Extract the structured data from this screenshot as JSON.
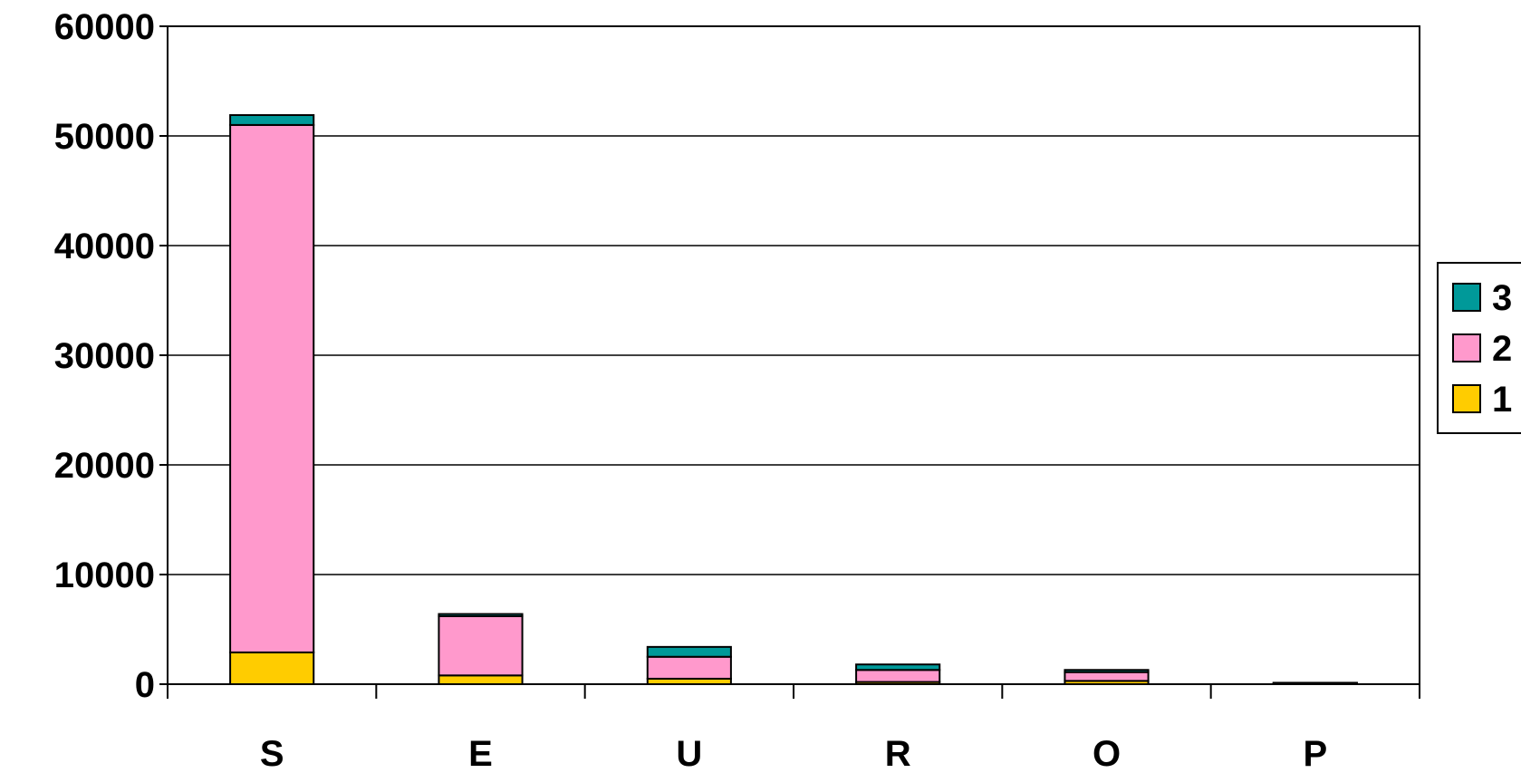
{
  "chart_data": {
    "type": "bar",
    "stacked": true,
    "title": "",
    "xlabel": "",
    "ylabel": "",
    "categories": [
      "S",
      "E",
      "U",
      "R",
      "O",
      "P"
    ],
    "series": [
      {
        "name": "1",
        "color": "#FFCC00",
        "values": [
          2900,
          800,
          500,
          200,
          300,
          50
        ]
      },
      {
        "name": "2",
        "color": "#FF99CC",
        "values": [
          48100,
          5400,
          2000,
          1100,
          800,
          50
        ]
      },
      {
        "name": "3",
        "color": "#009999",
        "values": [
          900,
          200,
          900,
          500,
          200,
          30
        ]
      }
    ],
    "ylim": [
      0,
      60000
    ],
    "yticks": [
      0,
      10000,
      20000,
      30000,
      40000,
      50000,
      60000
    ],
    "ytick_labels": [
      "0",
      "10000",
      "20000",
      "30000",
      "40000",
      "50000",
      "60000"
    ],
    "grid": true,
    "legend": {
      "position": "right",
      "order": [
        "3",
        "2",
        "1"
      ]
    }
  }
}
